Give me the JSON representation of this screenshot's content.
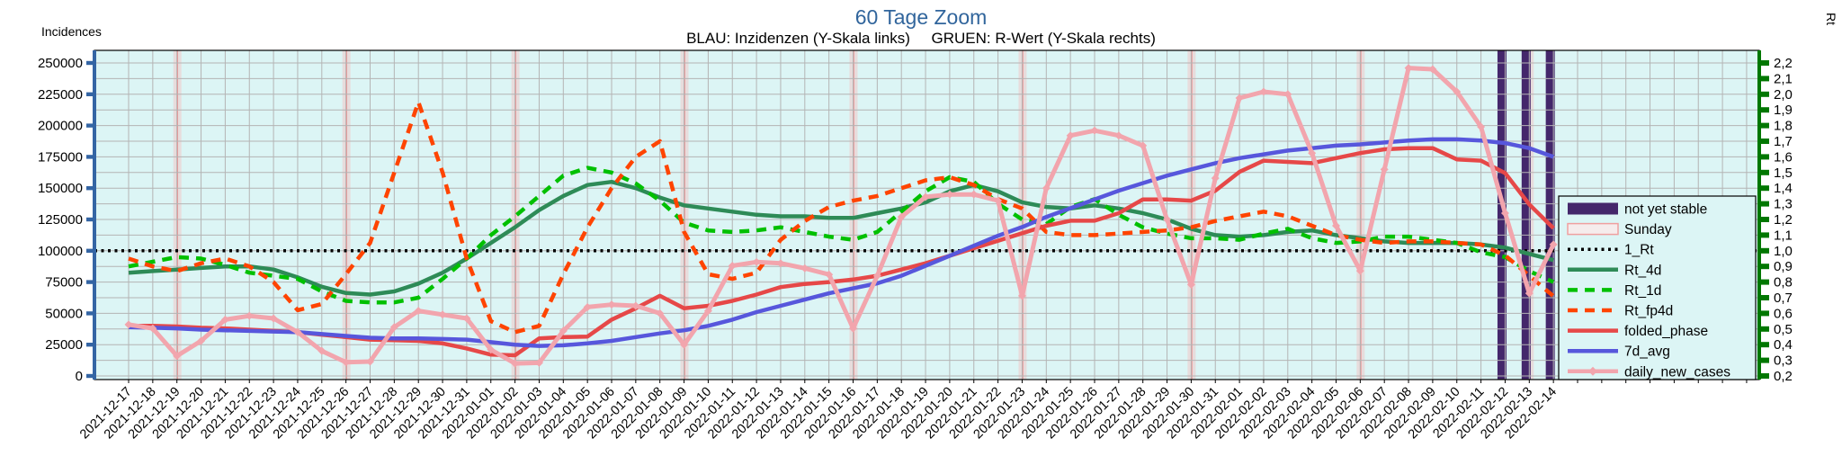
{
  "title": "60 Tage Zoom",
  "subtitle": "BLAU: Inzidenzen (Y-Skala links)     GRUEN: R-Wert (Y-Skala rechts)",
  "colors": {
    "title": "#31659c",
    "plot_bg": "#dcf5f5",
    "grid": "#b4b4b4",
    "sunday_band": "#e7dcdc",
    "sunday_line": "#ee9090",
    "not_yet_stable": "#44276b",
    "left_axis": "#3465a4",
    "right_axis": "#007700"
  },
  "chart_data": {
    "type": "line",
    "title": "60 Tage Zoom",
    "subtitle": "BLAU: Inzidenzen (Y-Skala links)     GRUEN: R-Wert (Y-Skala rechts)",
    "grid": true,
    "legend_position": "right",
    "left_axis": {
      "label": "Incidences",
      "min": 0,
      "max": 250000,
      "tick_step": 25000,
      "tick_labels": [
        "0",
        "25000",
        "50000",
        "75000",
        "100000",
        "125000",
        "150000",
        "175000",
        "200000",
        "225000",
        "250000"
      ]
    },
    "right_axis": {
      "label": "Rt",
      "min": 0.2,
      "max": 2.2,
      "tick_step": 0.1,
      "tick_labels": [
        "0,2",
        "0,3",
        "0,4",
        "0,5",
        "0,6",
        "0,7",
        "0,8",
        "0,9",
        "1,0",
        "1,1",
        "1,2",
        "1,3",
        "1,4",
        "1,5",
        "1,6",
        "1,7",
        "1,8",
        "1,9",
        "2,0",
        "2,1",
        "2,2"
      ]
    },
    "x_labels": [
      "2021-12-17",
      "2021-12-18",
      "2021-12-19",
      "2021-12-20",
      "2021-12-21",
      "2021-12-22",
      "2021-12-23",
      "2021-12-24",
      "2021-12-25",
      "2021-12-26",
      "2021-12-27",
      "2021-12-28",
      "2021-12-29",
      "2021-12-30",
      "2021-12-31",
      "2022-01-01",
      "2022-01-02",
      "2022-01-03",
      "2022-01-04",
      "2022-01-05",
      "2022-01-06",
      "2022-01-07",
      "2022-01-08",
      "2022-01-09",
      "2022-01-10",
      "2022-01-11",
      "2022-01-12",
      "2022-01-13",
      "2022-01-14",
      "2022-01-15",
      "2022-01-16",
      "2022-01-17",
      "2022-01-18",
      "2022-01-19",
      "2022-01-20",
      "2022-01-21",
      "2022-01-22",
      "2022-01-23",
      "2022-01-24",
      "2022-01-25",
      "2022-01-26",
      "2022-01-27",
      "2022-01-28",
      "2022-01-29",
      "2022-01-30",
      "2022-01-31",
      "2022-02-01",
      "2022-02-02",
      "2022-02-03",
      "2022-02-04",
      "2022-02-05",
      "2022-02-06",
      "2022-02-07",
      "2022-02-08",
      "2022-02-09",
      "2022-02-10",
      "2022-02-11",
      "2022-02-12",
      "2022-02-13",
      "2022-02-14"
    ],
    "sunday_indices": [
      2,
      9,
      16,
      23,
      30,
      37,
      44,
      51,
      58
    ],
    "not_yet_stable_indices": [
      57,
      58,
      59
    ],
    "series": [
      {
        "name": "1_Rt",
        "axis": "right",
        "style": "dotted",
        "color": "#000000",
        "constant": 1.0
      },
      {
        "name": "Rt_4d",
        "axis": "right",
        "style": "solid",
        "color": "#2e8b57",
        "values": [
          0.86,
          0.87,
          0.88,
          0.89,
          0.9,
          0.9,
          0.88,
          0.83,
          0.77,
          0.73,
          0.72,
          0.74,
          0.79,
          0.86,
          0.95,
          1.05,
          1.15,
          1.26,
          1.35,
          1.42,
          1.44,
          1.4,
          1.34,
          1.29,
          1.27,
          1.25,
          1.23,
          1.22,
          1.22,
          1.21,
          1.21,
          1.24,
          1.27,
          1.31,
          1.38,
          1.42,
          1.38,
          1.31,
          1.28,
          1.27,
          1.29,
          1.27,
          1.24,
          1.2,
          1.14,
          1.1,
          1.09,
          1.1,
          1.12,
          1.13,
          1.1,
          1.08,
          1.06,
          1.05,
          1.05,
          1.05,
          1.04,
          1.02,
          0.98,
          0.94
        ]
      },
      {
        "name": "Rt_1d",
        "axis": "right",
        "style": "dashed",
        "color": "#00c000",
        "values": [
          0.9,
          0.93,
          0.96,
          0.95,
          0.91,
          0.86,
          0.84,
          0.82,
          0.74,
          0.68,
          0.67,
          0.67,
          0.7,
          0.82,
          0.95,
          1.1,
          1.22,
          1.35,
          1.48,
          1.53,
          1.5,
          1.43,
          1.32,
          1.18,
          1.13,
          1.12,
          1.13,
          1.15,
          1.12,
          1.09,
          1.07,
          1.12,
          1.25,
          1.38,
          1.47,
          1.44,
          1.3,
          1.2,
          1.17,
          1.28,
          1.33,
          1.23,
          1.15,
          1.11,
          1.08,
          1.08,
          1.07,
          1.11,
          1.14,
          1.08,
          1.05,
          1.06,
          1.09,
          1.09,
          1.07,
          1.05,
          0.99,
          0.96,
          0.87,
          0.8
        ]
      },
      {
        "name": "Rt_fp4d",
        "axis": "right",
        "style": "dashed",
        "color": "#ff4400",
        "values": [
          0.95,
          0.9,
          0.87,
          0.92,
          0.95,
          0.9,
          0.8,
          0.62,
          0.66,
          0.85,
          1.05,
          1.5,
          1.95,
          1.5,
          0.95,
          0.55,
          0.48,
          0.52,
          0.85,
          1.15,
          1.4,
          1.6,
          1.7,
          1.12,
          0.85,
          0.82,
          0.86,
          1.07,
          1.19,
          1.28,
          1.32,
          1.35,
          1.4,
          1.45,
          1.47,
          1.42,
          1.33,
          1.27,
          1.12,
          1.1,
          1.1,
          1.11,
          1.12,
          1.13,
          1.15,
          1.19,
          1.22,
          1.25,
          1.22,
          1.16,
          1.1,
          1.07,
          1.05,
          1.06,
          1.06,
          1.05,
          1.04,
          0.97,
          0.84,
          0.71
        ]
      },
      {
        "name": "folded_phase",
        "axis": "left",
        "style": "solid",
        "color": "#e64848",
        "values": [
          40000,
          40000,
          39500,
          38500,
          38000,
          37000,
          36000,
          35000,
          33000,
          31000,
          29000,
          28500,
          28000,
          26000,
          22000,
          17000,
          16500,
          30000,
          31000,
          31500,
          45000,
          54000,
          64000,
          54000,
          56000,
          60000,
          65000,
          71000,
          73500,
          75000,
          77000,
          80000,
          85000,
          90000,
          96000,
          102000,
          108000,
          114000,
          120000,
          124000,
          124000,
          130000,
          141000,
          141000,
          140000,
          148000,
          163000,
          172000,
          171000,
          170000,
          174000,
          178000,
          181000,
          182000,
          182000,
          173000,
          172000,
          162000,
          137000,
          118000
        ]
      },
      {
        "name": "7d_avg",
        "axis": "left",
        "style": "solid",
        "color": "#5757dc",
        "values": [
          39000,
          38500,
          38000,
          37000,
          36500,
          36000,
          35500,
          35000,
          33500,
          32000,
          30500,
          30000,
          30000,
          29500,
          29000,
          27000,
          25000,
          24000,
          24500,
          26000,
          28000,
          31000,
          34000,
          36500,
          40000,
          45000,
          51000,
          56000,
          61000,
          66000,
          70000,
          74000,
          80000,
          88000,
          96000,
          104000,
          112000,
          119000,
          127000,
          134000,
          141000,
          148000,
          154000,
          160000,
          165000,
          170000,
          174000,
          177000,
          180000,
          182000,
          184000,
          185000,
          186500,
          188000,
          189000,
          189000,
          188000,
          186000,
          182000,
          175000
        ]
      },
      {
        "name": "daily_new_cases",
        "axis": "left",
        "style": "solid-diamond",
        "color": "#f2a5ad",
        "values": [
          41000,
          38000,
          16000,
          28000,
          45000,
          48000,
          46000,
          35000,
          20000,
          11000,
          11500,
          39000,
          52000,
          49000,
          46000,
          21000,
          10000,
          10500,
          36000,
          55000,
          57000,
          56000,
          50000,
          25000,
          52000,
          88000,
          91000,
          90000,
          86000,
          81000,
          38000,
          80000,
          127000,
          143000,
          145000,
          145000,
          140000,
          64000,
          150000,
          192000,
          196000,
          192000,
          184000,
          125000,
          73000,
          158000,
          222000,
          227000,
          225000,
          178000,
          120000,
          84000,
          165000,
          246000,
          245000,
          227000,
          199000,
          130000,
          66000,
          105000
        ]
      }
    ],
    "legend": [
      {
        "name": "not-yet-stable",
        "label": "not yet stable",
        "swatch": "rect",
        "color": "#44276b"
      },
      {
        "name": "sunday",
        "label": "Sunday",
        "swatch": "rect-outline",
        "color": "#f0a0a0",
        "fill": "#f6ecec"
      },
      {
        "name": "1-rt",
        "label": "1_Rt",
        "swatch": "dotted",
        "color": "#000000"
      },
      {
        "name": "rt-4d",
        "label": "Rt_4d",
        "swatch": "line",
        "color": "#2e8b57"
      },
      {
        "name": "rt-1d",
        "label": "Rt_1d",
        "swatch": "dashed",
        "color": "#00c000"
      },
      {
        "name": "rt-fp4d",
        "label": "Rt_fp4d",
        "swatch": "dashed",
        "color": "#ff4400"
      },
      {
        "name": "folded-phase",
        "label": "folded_phase",
        "swatch": "line",
        "color": "#e64848"
      },
      {
        "name": "7d-avg",
        "label": "7d_avg",
        "swatch": "line",
        "color": "#5757dc"
      },
      {
        "name": "daily-new-cases",
        "label": "daily_new_cases",
        "swatch": "line-diamond",
        "color": "#f2a5ad"
      }
    ]
  }
}
